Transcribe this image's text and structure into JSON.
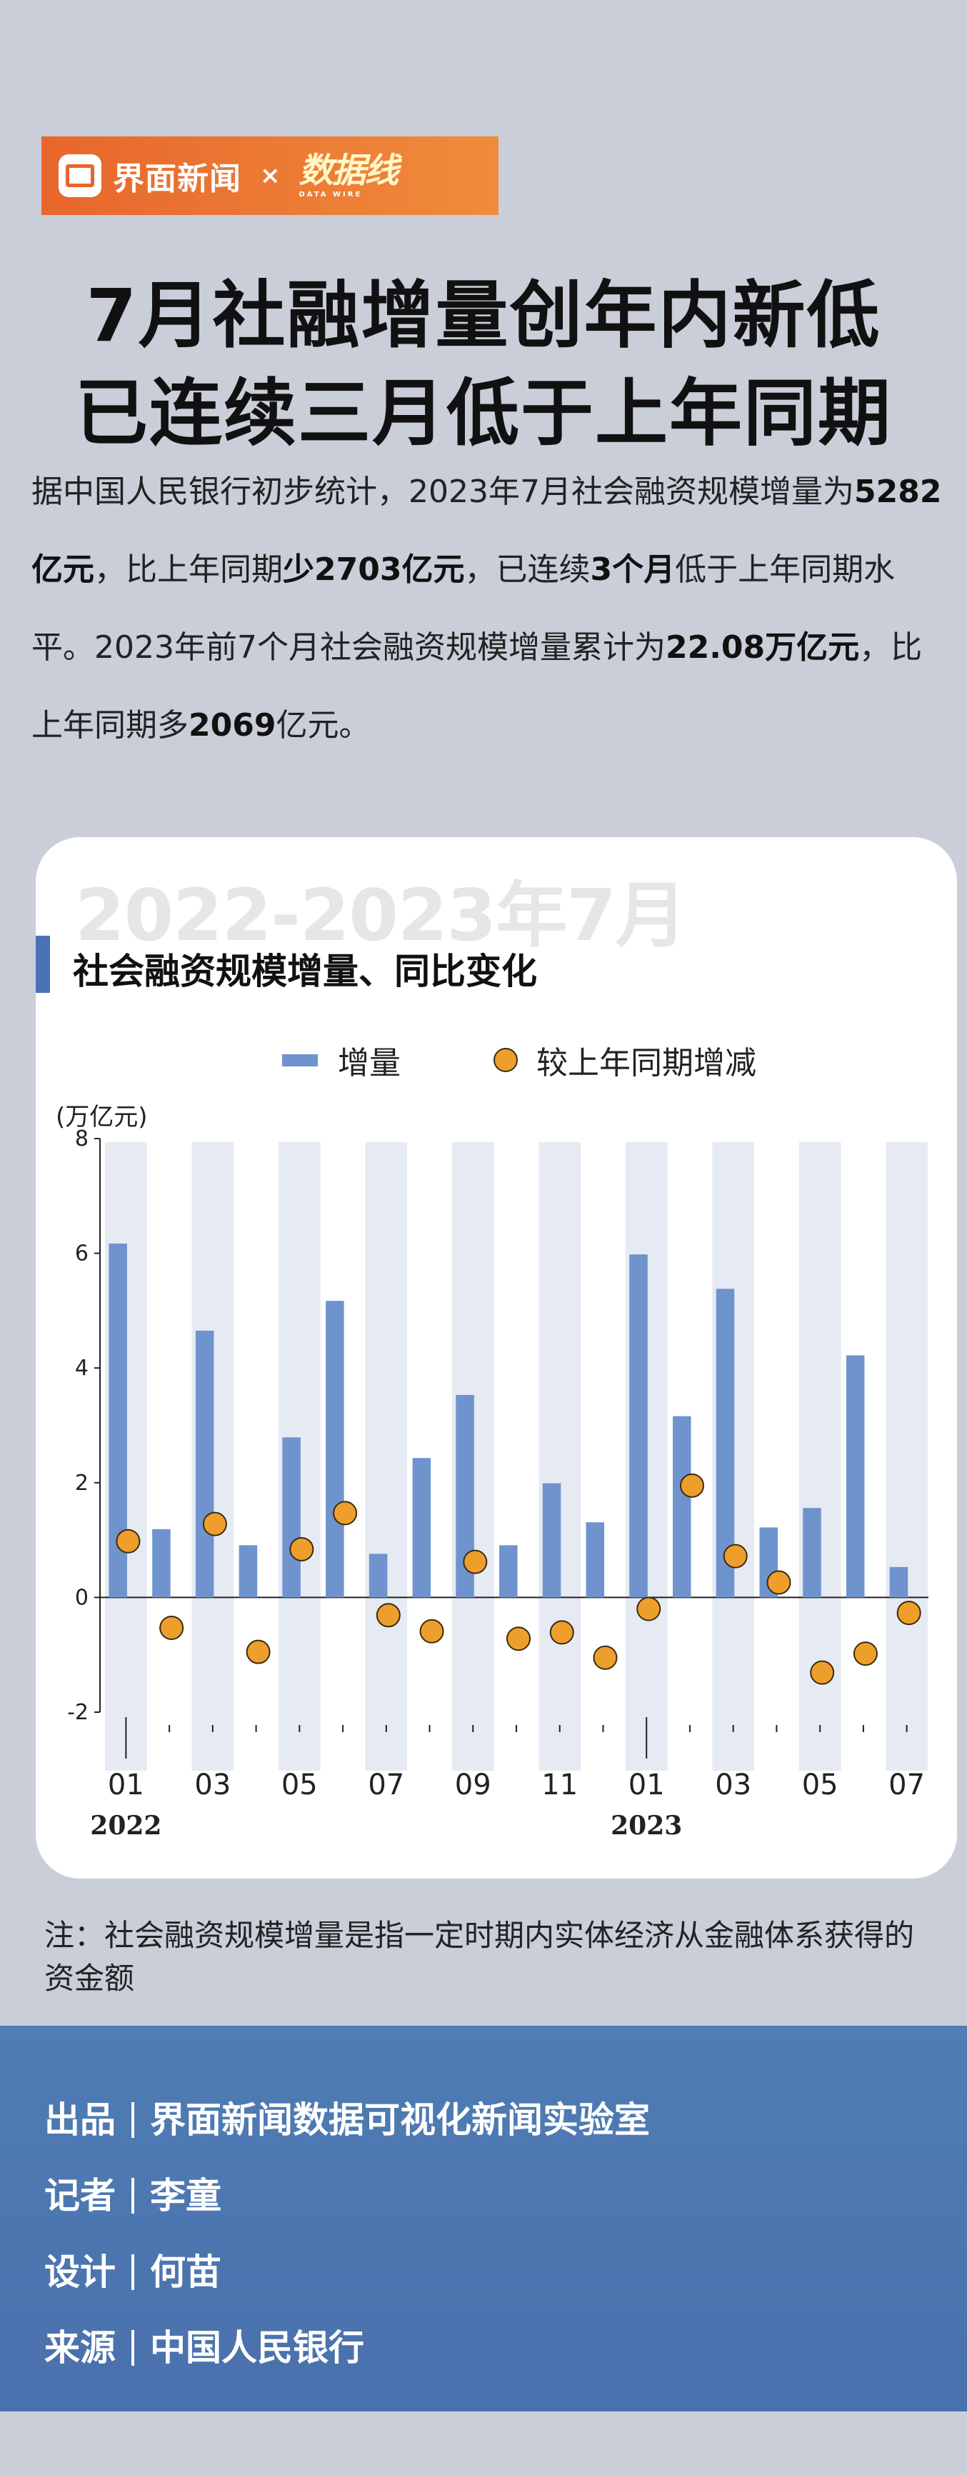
{
  "brand": {
    "name": "界面新闻",
    "connector": "×",
    "partner": "数据线",
    "partner_sub": "DATA WIRE"
  },
  "headline": {
    "line1": "7月社融增量创年内新低",
    "line2": "已连续三月低于上年同期"
  },
  "intro": {
    "p1": "据中国人民银行初步统计，2023年7月社会融资规模增量为",
    "b1": "5282亿元",
    "p2": "，比上年同期",
    "b2": "少2703亿元",
    "p3": "，已连续",
    "b3": "3个月",
    "p4": "低于上年同期水平。2023年前7个月社会融资规模增量累计为",
    "b4": "22.08万亿元",
    "p5": "，比上年同期多",
    "b5": "2069",
    "p6": "亿元。"
  },
  "chart_card": {
    "period": "2022-2023年7月",
    "title": "社会融资规模增量、同比变化",
    "unit": "(万亿元)"
  },
  "chart_data": {
    "type": "bar",
    "title": "社会融资规模增量、同比变化",
    "ylabel": "(万亿元)",
    "ylim": [
      -2,
      8
    ],
    "yticks": [
      -2,
      0,
      2,
      4,
      6,
      8
    ],
    "categories": [
      "2022-01",
      "2022-02",
      "2022-03",
      "2022-04",
      "2022-05",
      "2022-06",
      "2022-07",
      "2022-08",
      "2022-09",
      "2022-10",
      "2022-11",
      "2022-12",
      "2023-01",
      "2023-02",
      "2023-03",
      "2023-04",
      "2023-05",
      "2023-06",
      "2023-07"
    ],
    "x_tick_labels": [
      "01",
      "",
      "03",
      "",
      "05",
      "",
      "07",
      "",
      "09",
      "",
      "11",
      "",
      "01",
      "",
      "03",
      "",
      "05",
      "",
      "07"
    ],
    "year_labels": [
      {
        "index": 0,
        "label": "2022"
      },
      {
        "index": 12,
        "label": "2023"
      }
    ],
    "series": [
      {
        "name": "增量",
        "type": "bar",
        "color": "#6e93cd",
        "values": [
          6.17,
          1.19,
          4.65,
          0.91,
          2.79,
          5.17,
          0.76,
          2.43,
          3.53,
          0.91,
          1.99,
          1.31,
          5.98,
          3.16,
          5.38,
          1.22,
          1.56,
          4.22,
          0.53
        ]
      },
      {
        "name": "较上年同期增减",
        "type": "scatter",
        "color": "#ee9f2b",
        "values": [
          0.98,
          -0.53,
          1.28,
          -0.95,
          0.84,
          1.47,
          -0.31,
          -0.59,
          0.62,
          -0.72,
          -0.61,
          -1.05,
          -0.2,
          1.95,
          0.72,
          0.26,
          -1.31,
          -0.98,
          -0.27
        ]
      }
    ],
    "legend_position": "top",
    "grid": false
  },
  "footnote": "注：社会融资规模增量是指一定时期内实体经济从金融体系获得的资金额",
  "credits": [
    {
      "label": "出品",
      "value": "界面新闻数据可视化新闻实验室"
    },
    {
      "label": "记者",
      "value": "李童"
    },
    {
      "label": "设计",
      "value": "何苗"
    },
    {
      "label": "来源",
      "value": "中国人民银行"
    }
  ],
  "colors": {
    "background": "#c9ced9",
    "brand_orange": "#e8662c",
    "bar_blue": "#6e93cd",
    "dot_orange": "#ee9f2b",
    "credits_blue": "#4a70ad"
  }
}
